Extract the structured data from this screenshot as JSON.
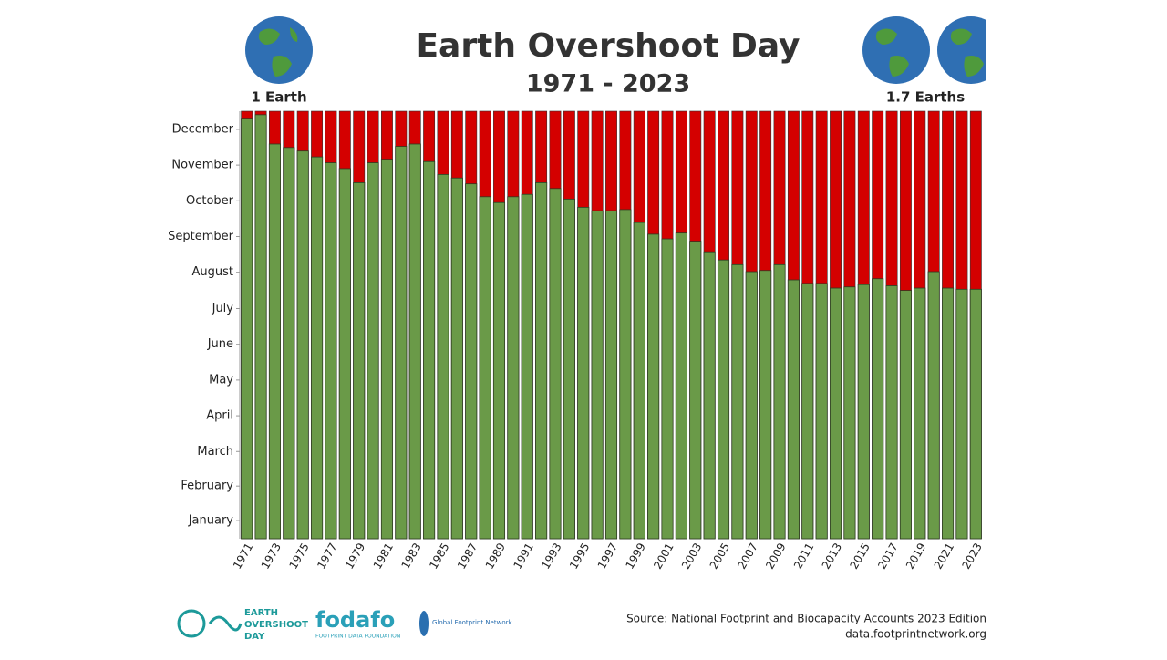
{
  "chart_data": {
    "type": "bar",
    "title": "Earth Overshoot Day",
    "subtitle": "1971 - 2023",
    "left_note": "1 Earth",
    "right_note": "1.7 Earths",
    "categories": [
      "1971",
      null,
      "1973",
      null,
      "1975",
      null,
      "1977",
      null,
      "1979",
      null,
      "1981",
      null,
      "1983",
      null,
      "1985",
      null,
      "1987",
      null,
      "1989",
      null,
      "1991",
      null,
      "1993",
      null,
      "1995",
      null,
      "1997",
      null,
      "1999",
      null,
      "2001",
      null,
      "2003",
      null,
      "2005",
      null,
      "2007",
      null,
      "2009",
      null,
      "2011",
      null,
      "2013",
      null,
      "2015",
      null,
      "2017",
      null,
      "2019",
      null,
      "2021",
      null,
      "2023"
    ],
    "values": [
      359,
      362,
      337,
      334,
      331,
      326,
      321,
      316,
      304,
      321,
      324,
      335,
      337,
      322,
      311,
      308,
      303,
      292,
      287,
      292,
      294,
      304,
      299,
      290,
      283,
      280,
      280,
      281,
      270,
      260,
      256,
      261,
      254,
      245,
      238,
      234,
      228,
      229,
      234,
      221,
      218,
      218,
      214,
      215,
      217,
      222,
      216,
      212,
      214,
      228,
      214,
      213,
      213
    ],
    "color": "#6a9a48",
    "background_color": "#d40000",
    "ylim": [
      0,
      365
    ],
    "yticks": [
      {
        "value": 15.5,
        "label": "January"
      },
      {
        "value": 45,
        "label": "February"
      },
      {
        "value": 74.5,
        "label": "March"
      },
      {
        "value": 105,
        "label": "April"
      },
      {
        "value": 135.5,
        "label": "May"
      },
      {
        "value": 166,
        "label": "June"
      },
      {
        "value": 196.5,
        "label": "July"
      },
      {
        "value": 227.5,
        "label": "August"
      },
      {
        "value": 258,
        "label": "September"
      },
      {
        "value": 288.5,
        "label": "October"
      },
      {
        "value": 319,
        "label": "November"
      },
      {
        "value": 349.5,
        "label": "December"
      }
    ]
  },
  "footer": {
    "logo1": [
      "EARTH",
      "OVERSHOOT",
      "DAY"
    ],
    "logo2": "fodafo",
    "logo2_sub": "FOOTPRINT DATA FOUNDATION",
    "logo3": "Global Footprint Network",
    "source": "Source: National Footprint and Biocapacity Accounts 2023 Edition",
    "url": "data.footprintnetwork.org"
  }
}
